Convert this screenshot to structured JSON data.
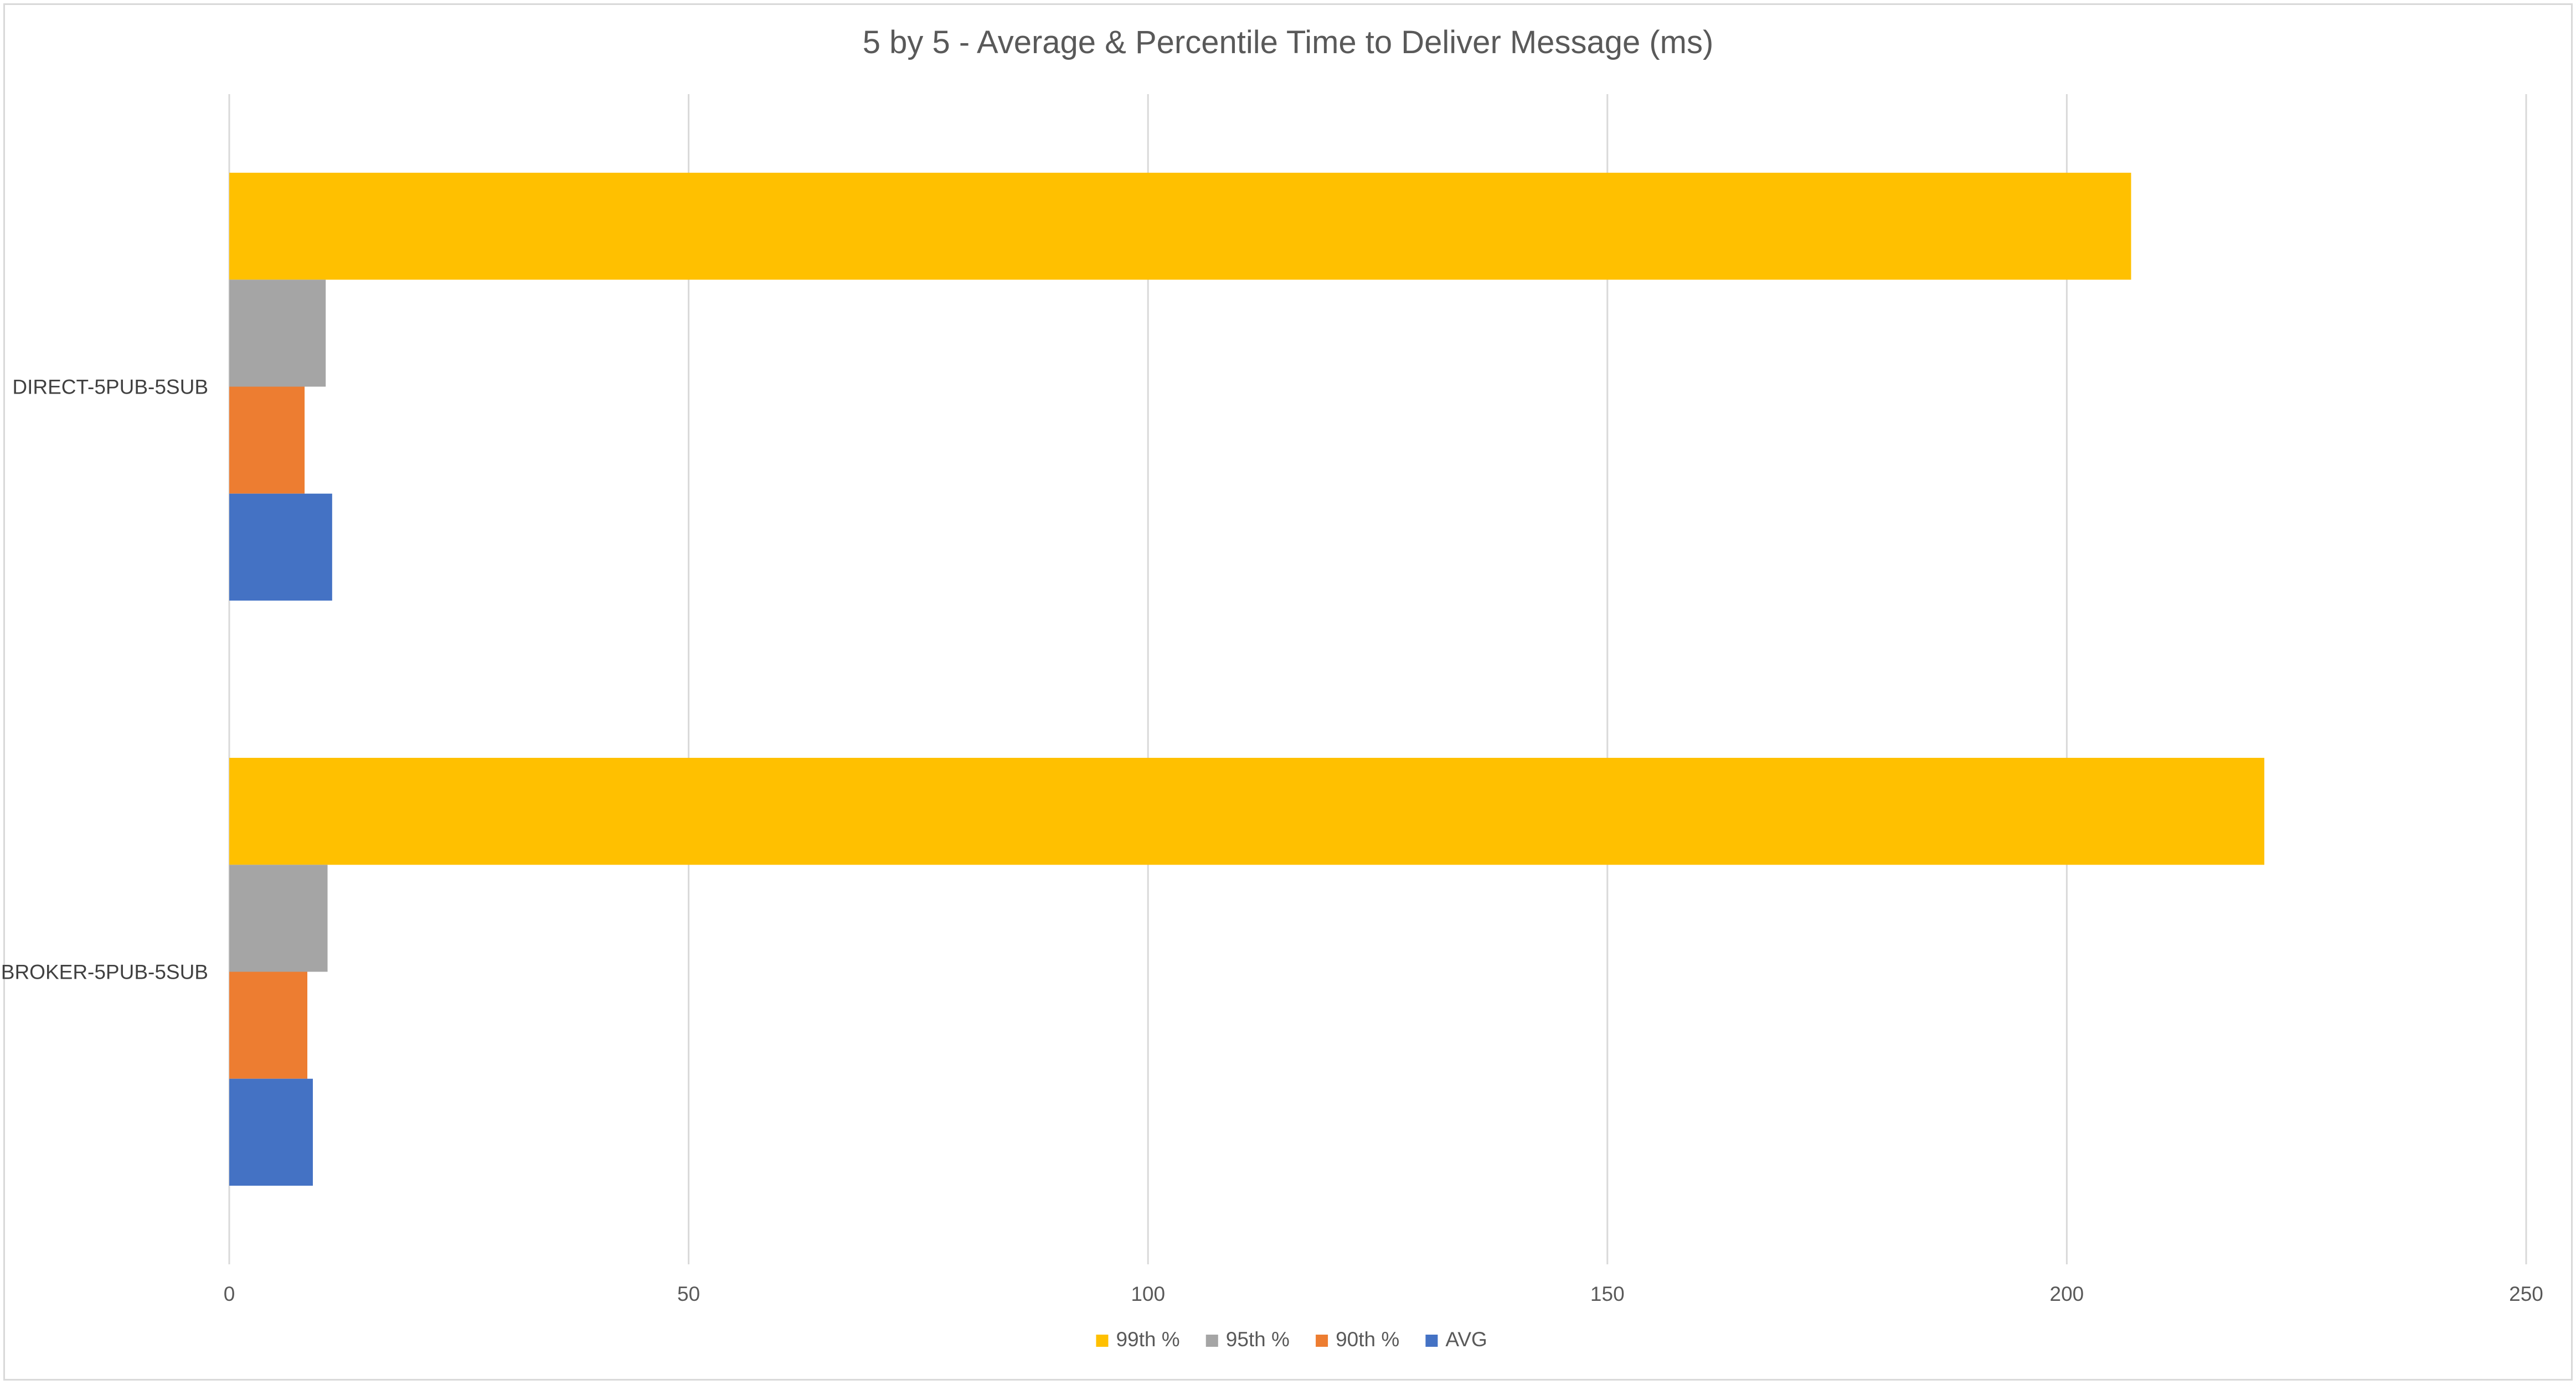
{
  "chart_data": {
    "type": "bar",
    "orientation": "horizontal",
    "title": "5 by 5 - Average & Percentile Time to Deliver Message (ms)",
    "xlabel": "",
    "ylabel": "",
    "xlim": [
      0,
      250
    ],
    "x_ticks": [
      "0",
      "50",
      "100",
      "150",
      "200",
      "250"
    ],
    "grid": "vertical",
    "legend_position": "bottom",
    "categories": [
      "DIRECT-5PUB-5SUB",
      "BROKER-5PUB-5SUB"
    ],
    "series": [
      {
        "name": "99th %",
        "color": "#FFC000",
        "values": [
          207,
          221.5
        ]
      },
      {
        "name": "95th %",
        "color": "#A5A5A5",
        "values": [
          10.5,
          10.7
        ]
      },
      {
        "name": "90th %",
        "color": "#ED7D31",
        "values": [
          8.2,
          8.5
        ]
      },
      {
        "name": "AVG",
        "color": "#4472C4",
        "values": [
          11.2,
          9.1
        ]
      }
    ],
    "legend_order": [
      "99th %",
      "95th %",
      "90th %",
      "AVG"
    ]
  }
}
